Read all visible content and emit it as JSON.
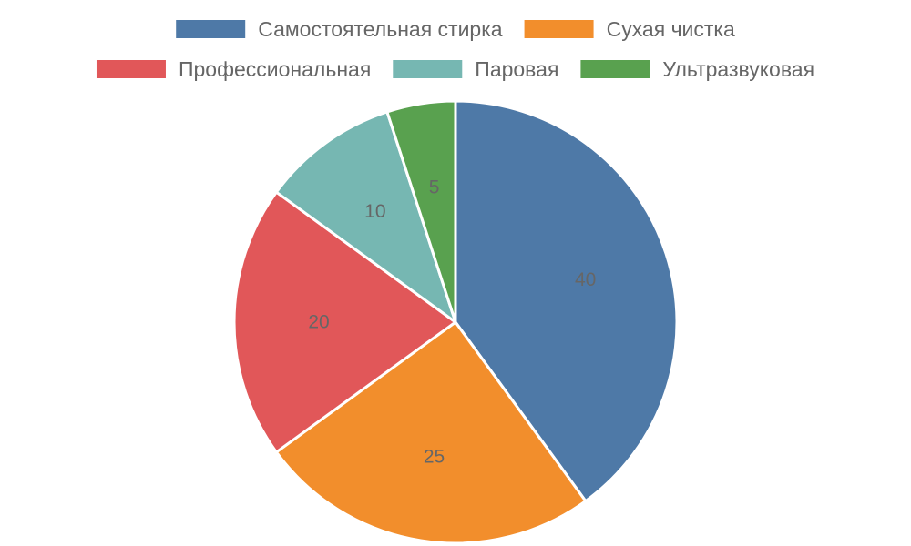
{
  "chart_data": {
    "type": "pie",
    "title": "",
    "slices": [
      {
        "label": "Самостоятельная стирка",
        "value": 40,
        "color": "#4e79a7"
      },
      {
        "label": "Сухая чистка",
        "value": 25,
        "color": "#f28e2c"
      },
      {
        "label": "Профессиональная",
        "value": 20,
        "color": "#e15759"
      },
      {
        "label": "Паровая",
        "value": 10,
        "color": "#76b7b2"
      },
      {
        "label": "Ультразвуковая",
        "value": 5,
        "color": "#59a14f"
      }
    ],
    "start_angle": "12 o'clock",
    "direction": "clockwise",
    "legend": "top"
  }
}
